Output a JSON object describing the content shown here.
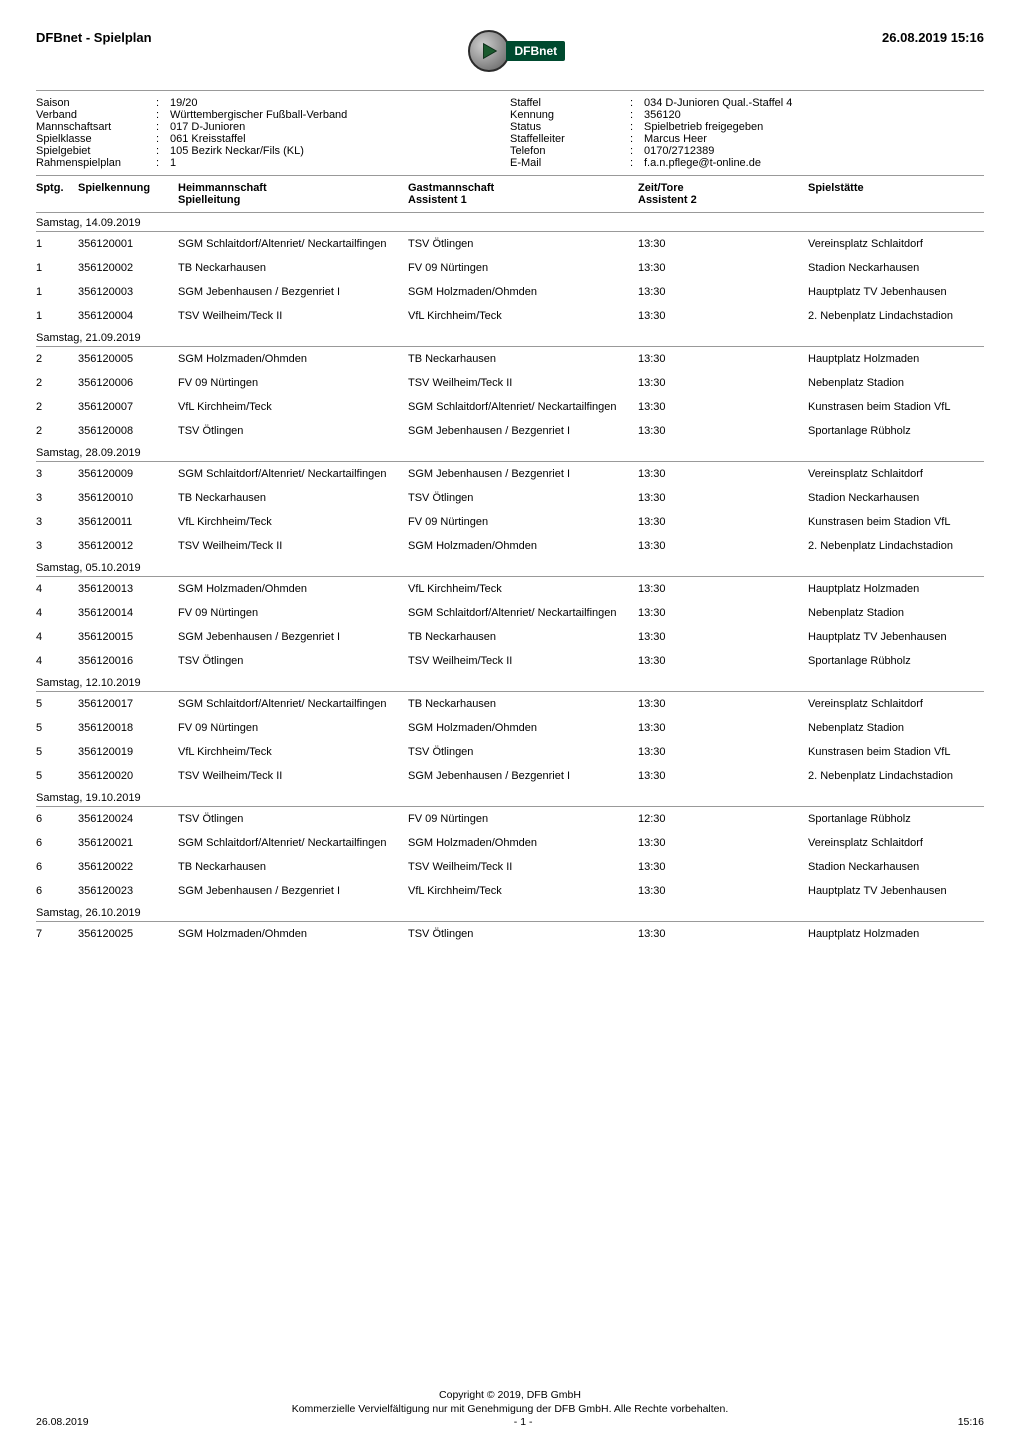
{
  "header": {
    "title": "DFBnet - Spielplan",
    "logo_text": "DFBnet",
    "date": "26.08.2019 15:16"
  },
  "meta": [
    {
      "left_label": "Saison",
      "left_value": "19/20",
      "right_label": "Staffel",
      "right_value": "034 D-Junioren Qual.-Staffel 4"
    },
    {
      "left_label": "Verband",
      "left_value": "Württembergischer Fußball-Verband",
      "right_label": "Kennung",
      "right_value": "356120"
    },
    {
      "left_label": "Mannschaftsart",
      "left_value": "017 D-Junioren",
      "right_label": "Status",
      "right_value": "Spielbetrieb freigegeben"
    },
    {
      "left_label": "Spielklasse",
      "left_value": "061 Kreisstaffel",
      "right_label": "Staffelleiter",
      "right_value": "Marcus Heer"
    },
    {
      "left_label": "Spielgebiet",
      "left_value": "105 Bezirk Neckar/Fils (KL)",
      "right_label": "Telefon",
      "right_value": "0170/2712389"
    },
    {
      "left_label": "Rahmenspielplan",
      "left_value": "1",
      "right_label": "E-Mail",
      "right_value": "f.a.n.pflege@t-online.de"
    }
  ],
  "columns": {
    "sptg": "Sptg.",
    "kennung": "Spielkennung",
    "heim1": "Heimmannschaft",
    "heim2": "Spielleitung",
    "gast1": "Gastmannschaft",
    "gast2": "Assistent 1",
    "zeit1": "Zeit/Tore",
    "zeit2": "Assistent 2",
    "stadion": "Spielstätte"
  },
  "days": [
    {
      "date": "Samstag, 14.09.2019",
      "matches": [
        {
          "sptg": "1",
          "kennung": "356120001",
          "heim": "SGM Schlaitdorf/Altenriet/ Neckartailfingen",
          "gast": "TSV Ötlingen",
          "zeit": "13:30",
          "stadion": "Vereinsplatz Schlaitdorf"
        },
        {
          "sptg": "1",
          "kennung": "356120002",
          "heim": "TB Neckarhausen",
          "gast": "FV 09 Nürtingen",
          "zeit": "13:30",
          "stadion": "Stadion Neckarhausen"
        },
        {
          "sptg": "1",
          "kennung": "356120003",
          "heim": "SGM Jebenhausen / Bezgenriet I",
          "gast": "SGM Holzmaden/Ohmden",
          "zeit": "13:30",
          "stadion": "Hauptplatz TV Jebenhausen"
        },
        {
          "sptg": "1",
          "kennung": "356120004",
          "heim": "TSV Weilheim/Teck II",
          "gast": "VfL Kirchheim/Teck",
          "zeit": "13:30",
          "stadion": "2. Nebenplatz Lindachstadion"
        }
      ]
    },
    {
      "date": "Samstag, 21.09.2019",
      "matches": [
        {
          "sptg": "2",
          "kennung": "356120005",
          "heim": "SGM Holzmaden/Ohmden",
          "gast": "TB Neckarhausen",
          "zeit": "13:30",
          "stadion": "Hauptplatz Holzmaden"
        },
        {
          "sptg": "2",
          "kennung": "356120006",
          "heim": "FV 09 Nürtingen",
          "gast": "TSV Weilheim/Teck II",
          "zeit": "13:30",
          "stadion": "Nebenplatz Stadion"
        },
        {
          "sptg": "2",
          "kennung": "356120007",
          "heim": "VfL Kirchheim/Teck",
          "gast": "SGM Schlaitdorf/Altenriet/ Neckartailfingen",
          "zeit": "13:30",
          "stadion": "Kunstrasen beim Stadion VfL"
        },
        {
          "sptg": "2",
          "kennung": "356120008",
          "heim": "TSV Ötlingen",
          "gast": "SGM Jebenhausen / Bezgenriet I",
          "zeit": "13:30",
          "stadion": "Sportanlage Rübholz"
        }
      ]
    },
    {
      "date": "Samstag, 28.09.2019",
      "matches": [
        {
          "sptg": "3",
          "kennung": "356120009",
          "heim": "SGM Schlaitdorf/Altenriet/ Neckartailfingen",
          "gast": "SGM Jebenhausen / Bezgenriet I",
          "zeit": "13:30",
          "stadion": "Vereinsplatz Schlaitdorf"
        },
        {
          "sptg": "3",
          "kennung": "356120010",
          "heim": "TB Neckarhausen",
          "gast": "TSV Ötlingen",
          "zeit": "13:30",
          "stadion": "Stadion Neckarhausen"
        },
        {
          "sptg": "3",
          "kennung": "356120011",
          "heim": "VfL Kirchheim/Teck",
          "gast": "FV 09 Nürtingen",
          "zeit": "13:30",
          "stadion": "Kunstrasen beim Stadion VfL"
        },
        {
          "sptg": "3",
          "kennung": "356120012",
          "heim": "TSV Weilheim/Teck II",
          "gast": "SGM Holzmaden/Ohmden",
          "zeit": "13:30",
          "stadion": "2. Nebenplatz Lindachstadion"
        }
      ]
    },
    {
      "date": "Samstag, 05.10.2019",
      "matches": [
        {
          "sptg": "4",
          "kennung": "356120013",
          "heim": "SGM Holzmaden/Ohmden",
          "gast": "VfL Kirchheim/Teck",
          "zeit": "13:30",
          "stadion": "Hauptplatz Holzmaden"
        },
        {
          "sptg": "4",
          "kennung": "356120014",
          "heim": "FV 09 Nürtingen",
          "gast": "SGM Schlaitdorf/Altenriet/ Neckartailfingen",
          "zeit": "13:30",
          "stadion": "Nebenplatz Stadion"
        },
        {
          "sptg": "4",
          "kennung": "356120015",
          "heim": "SGM Jebenhausen / Bezgenriet I",
          "gast": "TB Neckarhausen",
          "zeit": "13:30",
          "stadion": "Hauptplatz TV Jebenhausen"
        },
        {
          "sptg": "4",
          "kennung": "356120016",
          "heim": "TSV Ötlingen",
          "gast": "TSV Weilheim/Teck II",
          "zeit": "13:30",
          "stadion": "Sportanlage Rübholz"
        }
      ]
    },
    {
      "date": "Samstag, 12.10.2019",
      "matches": [
        {
          "sptg": "5",
          "kennung": "356120017",
          "heim": "SGM Schlaitdorf/Altenriet/ Neckartailfingen",
          "gast": "TB Neckarhausen",
          "zeit": "13:30",
          "stadion": "Vereinsplatz Schlaitdorf"
        },
        {
          "sptg": "5",
          "kennung": "356120018",
          "heim": "FV 09 Nürtingen",
          "gast": "SGM Holzmaden/Ohmden",
          "zeit": "13:30",
          "stadion": "Nebenplatz Stadion"
        },
        {
          "sptg": "5",
          "kennung": "356120019",
          "heim": "VfL Kirchheim/Teck",
          "gast": "TSV Ötlingen",
          "zeit": "13:30",
          "stadion": "Kunstrasen beim Stadion VfL"
        },
        {
          "sptg": "5",
          "kennung": "356120020",
          "heim": "TSV Weilheim/Teck II",
          "gast": "SGM Jebenhausen / Bezgenriet I",
          "zeit": "13:30",
          "stadion": "2. Nebenplatz Lindachstadion"
        }
      ]
    },
    {
      "date": "Samstag, 19.10.2019",
      "matches": [
        {
          "sptg": "6",
          "kennung": "356120024",
          "heim": "TSV Ötlingen",
          "gast": "FV 09 Nürtingen",
          "zeit": "12:30",
          "stadion": "Sportanlage Rübholz"
        },
        {
          "sptg": "6",
          "kennung": "356120021",
          "heim": "SGM Schlaitdorf/Altenriet/ Neckartailfingen",
          "gast": "SGM Holzmaden/Ohmden",
          "zeit": "13:30",
          "stadion": "Vereinsplatz Schlaitdorf"
        },
        {
          "sptg": "6",
          "kennung": "356120022",
          "heim": "TB Neckarhausen",
          "gast": "TSV Weilheim/Teck II",
          "zeit": "13:30",
          "stadion": "Stadion Neckarhausen"
        },
        {
          "sptg": "6",
          "kennung": "356120023",
          "heim": "SGM Jebenhausen / Bezgenriet I",
          "gast": "VfL Kirchheim/Teck",
          "zeit": "13:30",
          "stadion": "Hauptplatz TV Jebenhausen"
        }
      ]
    },
    {
      "date": "Samstag, 26.10.2019",
      "matches": [
        {
          "sptg": "7",
          "kennung": "356120025",
          "heim": "SGM Holzmaden/Ohmden",
          "gast": "TSV Ötlingen",
          "zeit": "13:30",
          "stadion": "Hauptplatz Holzmaden"
        }
      ]
    }
  ],
  "footer": {
    "copyright": "Copyright © 2019,  DFB GmbH",
    "rights": "Kommerzielle Vervielfältigung nur mit Genehmigung der DFB GmbH. Alle Rechte vorbehalten.",
    "left": "26.08.2019",
    "center_page": "- 1 -",
    "right": "15:16"
  }
}
